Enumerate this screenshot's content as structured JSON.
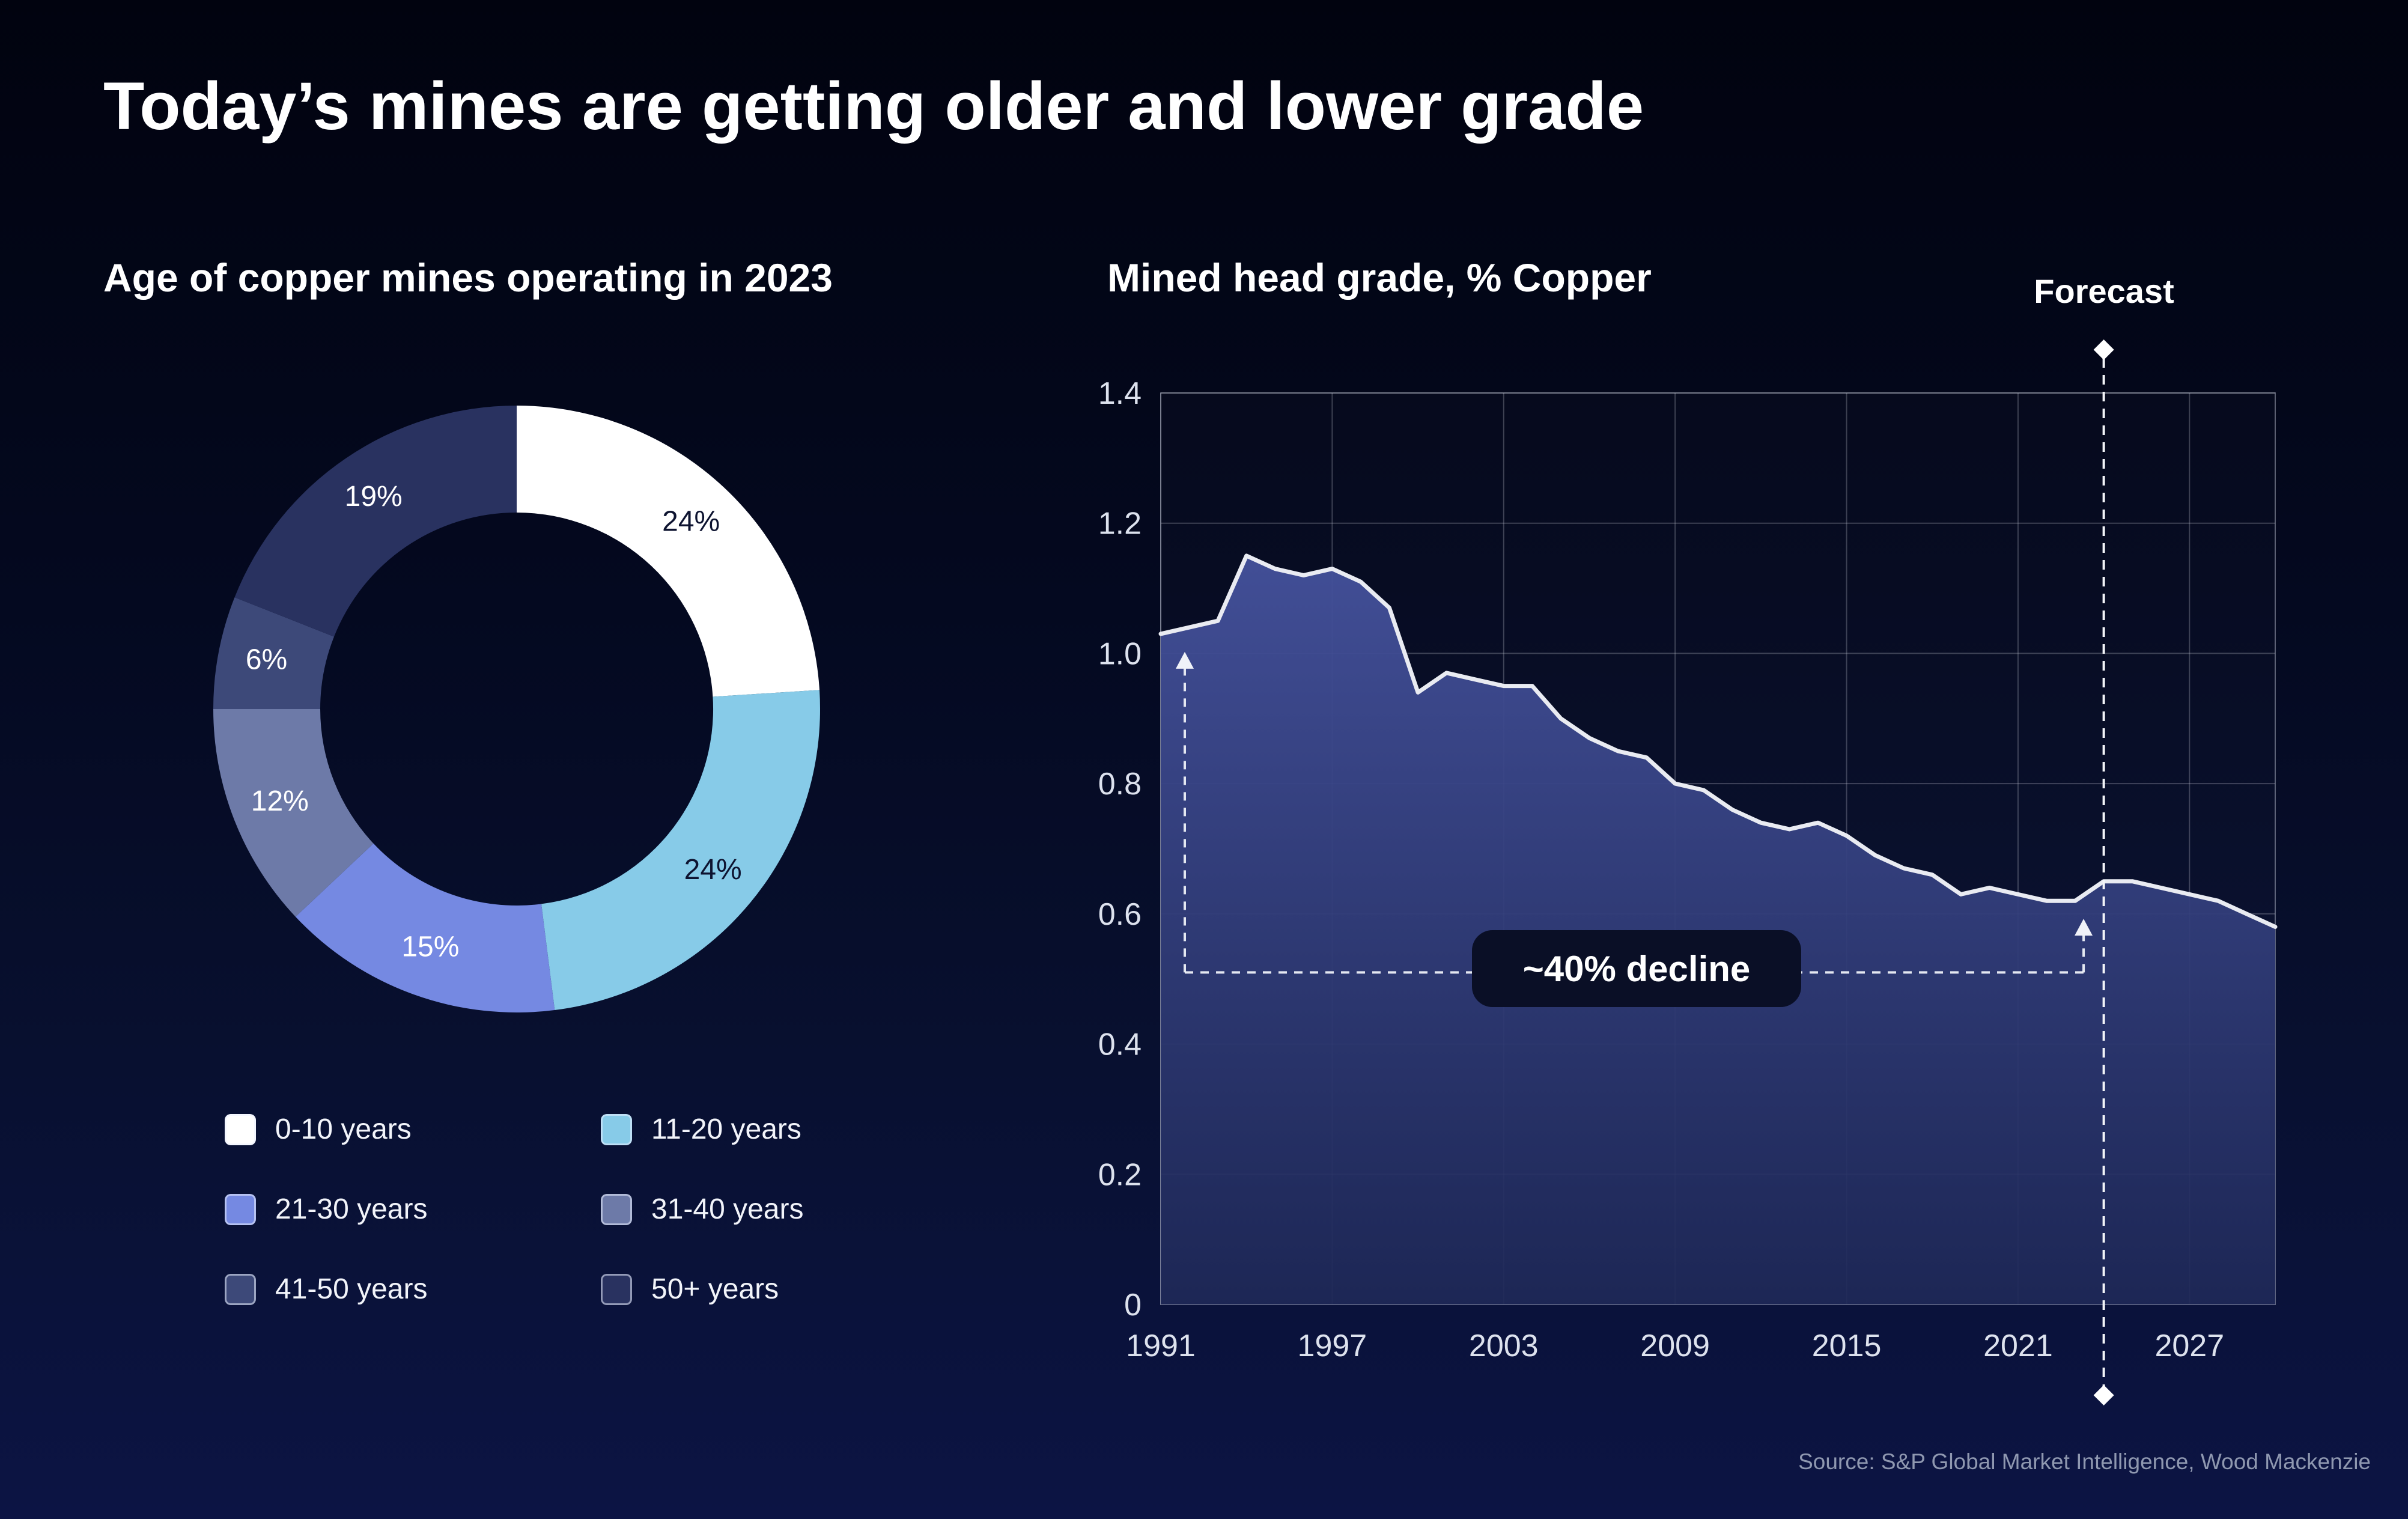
{
  "page": {
    "title": "Today’s mines are getting older and lower grade",
    "source": "Source: S&P Global Market Intelligence, Wood Mackenzie",
    "colors": {
      "background_top": "#01030f",
      "background_bottom": "#0c1444",
      "line": "#e9ebf2",
      "area_top": "#44519b",
      "area_bottom": "#1e2857",
      "grid": "rgba(200,205,220,0.28)",
      "plot_border": "rgba(200,205,220,0.45)",
      "badge_bg": "#0a0f26"
    }
  },
  "chart_data": [
    {
      "type": "pie",
      "donut": true,
      "title": "Age of copper mines operating in 2023",
      "value_suffix": "%",
      "slices": [
        {
          "label": "0-10 years",
          "value": 24,
          "color": "#ffffff",
          "text_color": "#0d1330"
        },
        {
          "label": "11-20 years",
          "value": 24,
          "color": "#87cbe8",
          "text_color": "#0d1330"
        },
        {
          "label": "21-30 years",
          "value": 15,
          "color": "#7589e2",
          "text_color": "#ffffff"
        },
        {
          "label": "31-40 years",
          "value": 12,
          "color": "#6d7aa8",
          "text_color": "#ffffff"
        },
        {
          "label": "41-50 years",
          "value": 6,
          "color": "#3d4979",
          "text_color": "#ffffff"
        },
        {
          "label": "50+ years",
          "value": 19,
          "color": "#293260",
          "text_color": "#ffffff"
        }
      ],
      "legend_position": "below-left"
    },
    {
      "type": "area",
      "title": "Mined head grade, % Copper",
      "xlabel": "",
      "ylabel": "",
      "xlim": [
        1991,
        2030
      ],
      "ylim": [
        0,
        1.4
      ],
      "grid": true,
      "xticks": [
        1991,
        1997,
        2003,
        2009,
        2015,
        2021,
        2027
      ],
      "yticks": [
        "0",
        "0.2",
        "0.4",
        "0.6",
        "0.8",
        "1.0",
        "1.2",
        "1.4"
      ],
      "x": [
        1991,
        1992,
        1993,
        1994,
        1995,
        1996,
        1997,
        1998,
        1999,
        2000,
        2001,
        2002,
        2003,
        2004,
        2005,
        2006,
        2007,
        2008,
        2009,
        2010,
        2011,
        2012,
        2013,
        2014,
        2015,
        2016,
        2017,
        2018,
        2019,
        2020,
        2021,
        2022,
        2023,
        2024,
        2025,
        2026,
        2027,
        2028,
        2029,
        2030
      ],
      "values": [
        1.03,
        1.04,
        1.05,
        1.15,
        1.13,
        1.12,
        1.13,
        1.11,
        1.07,
        0.94,
        0.97,
        0.96,
        0.95,
        0.95,
        0.9,
        0.87,
        0.85,
        0.84,
        0.8,
        0.79,
        0.76,
        0.74,
        0.73,
        0.74,
        0.72,
        0.69,
        0.67,
        0.66,
        0.63,
        0.64,
        0.63,
        0.62,
        0.62,
        0.65,
        0.65,
        0.64,
        0.63,
        0.62,
        0.6,
        0.58
      ],
      "forecast": {
        "label": "Forecast",
        "year": 2024
      },
      "annotation": {
        "label": "~40% decline",
        "from_year": 1991,
        "to_year": 2023,
        "bracket_value": 0.51
      }
    }
  ]
}
